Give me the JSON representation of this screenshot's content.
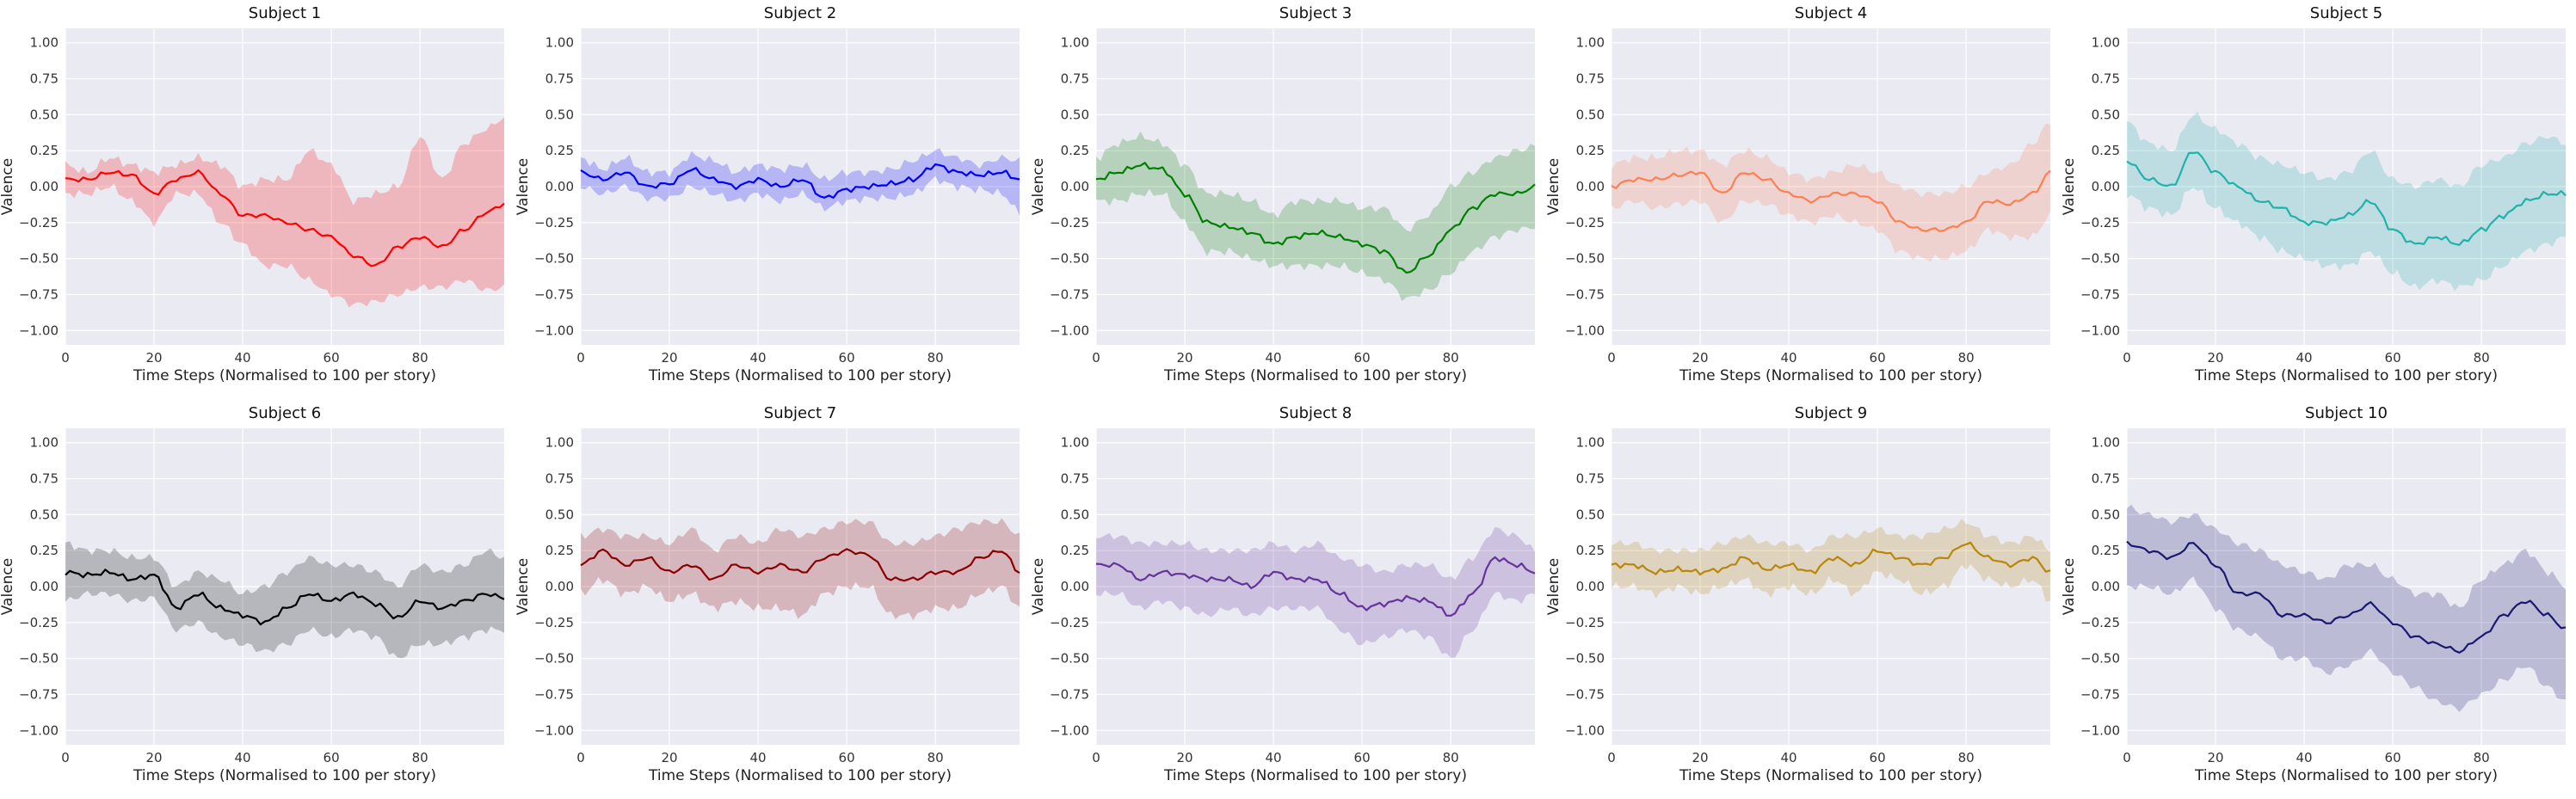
{
  "chart_data": {
    "type": "line",
    "layout": "2x5 grid of small multiples",
    "background": "#eaeaf2",
    "grid": true,
    "grid_color": "#ffffff",
    "xlim": [
      0,
      99
    ],
    "ylim": [
      -1.1,
      1.1
    ],
    "x_ticks": [
      0,
      20,
      40,
      60,
      80
    ],
    "y_ticks": [
      -1.0,
      -0.75,
      -0.5,
      -0.25,
      0.0,
      0.25,
      0.5,
      0.75,
      1.0
    ],
    "y_tick_labels": [
      "−1.00",
      "−0.75",
      "−0.50",
      "−0.25",
      "0.00",
      "0.25",
      "0.50",
      "0.75",
      "1.00"
    ],
    "xlabel": "Time Steps (Normalised to 100 per story)",
    "ylabel": "Valence",
    "band": "shaded region around the mean line",
    "knot_x": [
      0,
      5,
      10,
      15,
      20,
      25,
      30,
      35,
      40,
      45,
      50,
      55,
      60,
      65,
      70,
      75,
      80,
      85,
      90,
      95,
      99
    ],
    "panels": [
      {
        "title": "Subject 1",
        "color": "#ff0000",
        "line": [
          0.05,
          0.05,
          0.1,
          0.08,
          -0.05,
          0.05,
          0.1,
          -0.05,
          -0.2,
          -0.2,
          -0.25,
          -0.3,
          -0.35,
          -0.48,
          -0.55,
          -0.42,
          -0.35,
          -0.42,
          -0.3,
          -0.18,
          -0.12
        ],
        "upper": [
          0.15,
          0.1,
          0.2,
          0.15,
          0.1,
          0.15,
          0.2,
          0.15,
          0.0,
          0.05,
          0.05,
          0.25,
          0.15,
          -0.1,
          -0.05,
          0.0,
          0.35,
          0.05,
          0.3,
          0.4,
          0.48
        ],
        "lower": [
          -0.05,
          -0.05,
          0.0,
          -0.1,
          -0.25,
          -0.05,
          -0.05,
          -0.25,
          -0.4,
          -0.55,
          -0.55,
          -0.65,
          -0.75,
          -0.82,
          -0.8,
          -0.75,
          -0.7,
          -0.7,
          -0.65,
          -0.72,
          -0.7
        ]
      },
      {
        "title": "Subject 2",
        "color": "#0000ff",
        "line": [
          0.1,
          0.05,
          0.1,
          0.0,
          0.02,
          0.12,
          0.05,
          0.0,
          0.05,
          0.0,
          0.05,
          -0.08,
          -0.02,
          0.0,
          0.02,
          0.05,
          0.15,
          0.1,
          0.08,
          0.1,
          0.05
        ],
        "upper": [
          0.2,
          0.12,
          0.2,
          0.1,
          0.1,
          0.22,
          0.18,
          0.1,
          0.15,
          0.12,
          0.15,
          0.05,
          0.1,
          0.1,
          0.12,
          0.18,
          0.25,
          0.2,
          0.15,
          0.2,
          0.18
        ],
        "lower": [
          0.0,
          -0.05,
          0.0,
          -0.08,
          -0.08,
          0.0,
          -0.05,
          -0.1,
          -0.05,
          -0.1,
          -0.05,
          -0.15,
          -0.1,
          -0.08,
          -0.08,
          -0.05,
          0.05,
          0.0,
          -0.02,
          -0.05,
          -0.18
        ]
      },
      {
        "title": "Subject 3",
        "color": "#008000",
        "line": [
          0.05,
          0.1,
          0.15,
          0.12,
          -0.05,
          -0.25,
          -0.28,
          -0.32,
          -0.4,
          -0.35,
          -0.32,
          -0.35,
          -0.4,
          -0.45,
          -0.6,
          -0.48,
          -0.3,
          -0.15,
          -0.05,
          -0.05,
          0.0
        ],
        "upper": [
          0.2,
          0.3,
          0.35,
          0.3,
          0.15,
          -0.05,
          -0.05,
          -0.1,
          -0.2,
          -0.1,
          -0.1,
          -0.1,
          -0.15,
          -0.15,
          -0.3,
          -0.2,
          0.0,
          0.1,
          0.2,
          0.25,
          0.28
        ],
        "lower": [
          -0.1,
          -0.1,
          -0.05,
          -0.05,
          -0.25,
          -0.45,
          -0.45,
          -0.5,
          -0.55,
          -0.55,
          -0.55,
          -0.55,
          -0.6,
          -0.65,
          -0.78,
          -0.72,
          -0.6,
          -0.45,
          -0.35,
          -0.3,
          -0.28
        ]
      },
      {
        "title": "Subject 4",
        "color": "#ff7f50",
        "line": [
          0.0,
          0.05,
          0.05,
          0.08,
          0.1,
          -0.05,
          0.1,
          0.05,
          -0.05,
          -0.1,
          -0.05,
          -0.05,
          -0.1,
          -0.25,
          -0.3,
          -0.3,
          -0.25,
          -0.1,
          -0.12,
          -0.05,
          0.1
        ],
        "upper": [
          0.15,
          0.2,
          0.2,
          0.25,
          0.25,
          0.15,
          0.25,
          0.2,
          0.1,
          0.05,
          0.1,
          0.15,
          0.1,
          0.0,
          -0.05,
          -0.05,
          0.0,
          0.1,
          0.15,
          0.3,
          0.45
        ],
        "lower": [
          -0.15,
          -0.1,
          -0.15,
          -0.12,
          -0.1,
          -0.25,
          -0.1,
          -0.12,
          -0.2,
          -0.25,
          -0.2,
          -0.25,
          -0.3,
          -0.45,
          -0.5,
          -0.5,
          -0.45,
          -0.3,
          -0.35,
          -0.35,
          -0.2
        ]
      },
      {
        "title": "Subject 5",
        "color": "#20b2aa",
        "line": [
          0.18,
          0.05,
          0.0,
          0.25,
          0.1,
          0.0,
          -0.1,
          -0.15,
          -0.25,
          -0.25,
          -0.2,
          -0.1,
          -0.3,
          -0.4,
          -0.35,
          -0.4,
          -0.3,
          -0.2,
          -0.1,
          -0.05,
          -0.05
        ],
        "upper": [
          0.45,
          0.3,
          0.25,
          0.5,
          0.4,
          0.3,
          0.2,
          0.15,
          0.1,
          0.05,
          0.1,
          0.25,
          0.05,
          0.0,
          0.05,
          0.0,
          0.15,
          0.2,
          0.3,
          0.35,
          0.3
        ],
        "lower": [
          -0.05,
          -0.15,
          -0.2,
          0.0,
          -0.15,
          -0.25,
          -0.35,
          -0.45,
          -0.5,
          -0.55,
          -0.55,
          -0.45,
          -0.6,
          -0.7,
          -0.65,
          -0.7,
          -0.65,
          -0.55,
          -0.45,
          -0.4,
          -0.35
        ]
      },
      {
        "title": "Subject 6",
        "color": "#000000",
        "line": [
          0.1,
          0.08,
          0.1,
          0.05,
          0.08,
          -0.15,
          -0.05,
          -0.15,
          -0.2,
          -0.25,
          -0.15,
          -0.05,
          -0.1,
          -0.05,
          -0.12,
          -0.22,
          -0.1,
          -0.15,
          -0.1,
          -0.05,
          -0.08
        ],
        "upper": [
          0.3,
          0.25,
          0.25,
          0.2,
          0.2,
          0.0,
          0.1,
          0.05,
          -0.05,
          0.0,
          0.1,
          0.2,
          0.15,
          0.15,
          0.1,
          0.0,
          0.15,
          0.1,
          0.15,
          0.25,
          0.2
        ],
        "lower": [
          -0.1,
          -0.05,
          -0.05,
          -0.1,
          -0.08,
          -0.3,
          -0.25,
          -0.35,
          -0.4,
          -0.45,
          -0.4,
          -0.3,
          -0.35,
          -0.3,
          -0.35,
          -0.5,
          -0.4,
          -0.4,
          -0.35,
          -0.3,
          -0.3
        ]
      },
      {
        "title": "Subject 7",
        "color": "#8b0000",
        "line": [
          0.15,
          0.25,
          0.15,
          0.2,
          0.1,
          0.15,
          0.05,
          0.15,
          0.1,
          0.15,
          0.1,
          0.2,
          0.25,
          0.22,
          0.05,
          0.05,
          0.1,
          0.1,
          0.2,
          0.25,
          0.1
        ],
        "upper": [
          0.35,
          0.4,
          0.35,
          0.35,
          0.3,
          0.4,
          0.25,
          0.35,
          0.3,
          0.4,
          0.35,
          0.4,
          0.45,
          0.45,
          0.3,
          0.3,
          0.35,
          0.4,
          0.45,
          0.45,
          0.35
        ],
        "lower": [
          -0.05,
          0.05,
          -0.05,
          0.0,
          -0.1,
          -0.05,
          -0.15,
          -0.1,
          -0.15,
          -0.15,
          -0.2,
          -0.05,
          0.0,
          0.0,
          -0.2,
          -0.2,
          -0.15,
          -0.15,
          -0.05,
          0.0,
          -0.15
        ]
      },
      {
        "title": "Subject 8",
        "color": "#663399",
        "line": [
          0.15,
          0.15,
          0.05,
          0.1,
          0.08,
          0.05,
          0.05,
          0.0,
          0.1,
          0.05,
          0.05,
          -0.05,
          -0.15,
          -0.12,
          -0.08,
          -0.1,
          -0.2,
          -0.05,
          0.2,
          0.15,
          0.1
        ],
        "upper": [
          0.35,
          0.35,
          0.3,
          0.3,
          0.3,
          0.25,
          0.25,
          0.25,
          0.3,
          0.25,
          0.3,
          0.2,
          0.15,
          0.1,
          0.15,
          0.15,
          0.05,
          0.2,
          0.4,
          0.35,
          0.25
        ],
        "lower": [
          -0.05,
          -0.05,
          -0.15,
          -0.1,
          -0.15,
          -0.2,
          -0.15,
          -0.2,
          -0.15,
          -0.15,
          -0.15,
          -0.3,
          -0.4,
          -0.35,
          -0.3,
          -0.35,
          -0.5,
          -0.3,
          -0.05,
          -0.1,
          -0.05
        ]
      },
      {
        "title": "Subject 9",
        "color": "#b8860b",
        "line": [
          0.15,
          0.15,
          0.1,
          0.12,
          0.1,
          0.12,
          0.2,
          0.12,
          0.15,
          0.1,
          0.2,
          0.15,
          0.25,
          0.2,
          0.15,
          0.2,
          0.3,
          0.2,
          0.15,
          0.2,
          0.1
        ],
        "upper": [
          0.3,
          0.3,
          0.25,
          0.25,
          0.25,
          0.3,
          0.35,
          0.3,
          0.3,
          0.25,
          0.35,
          0.35,
          0.4,
          0.35,
          0.35,
          0.4,
          0.45,
          0.35,
          0.3,
          0.35,
          0.25
        ],
        "lower": [
          0.0,
          0.0,
          -0.05,
          0.0,
          -0.05,
          0.0,
          0.05,
          -0.05,
          0.0,
          -0.05,
          0.05,
          -0.05,
          0.1,
          0.05,
          -0.05,
          0.0,
          0.15,
          0.05,
          0.0,
          0.05,
          -0.1
        ]
      },
      {
        "title": "Subject 10",
        "color": "#191970",
        "line": [
          0.3,
          0.25,
          0.2,
          0.3,
          0.15,
          -0.05,
          -0.05,
          -0.2,
          -0.2,
          -0.25,
          -0.2,
          -0.12,
          -0.25,
          -0.35,
          -0.4,
          -0.45,
          -0.35,
          -0.2,
          -0.1,
          -0.2,
          -0.3
        ],
        "upper": [
          0.55,
          0.5,
          0.45,
          0.5,
          0.4,
          0.3,
          0.25,
          0.15,
          0.1,
          0.05,
          0.15,
          0.15,
          0.05,
          -0.05,
          -0.05,
          -0.15,
          0.05,
          0.15,
          0.25,
          0.1,
          0.0
        ],
        "lower": [
          0.0,
          0.0,
          -0.05,
          0.05,
          -0.15,
          -0.3,
          -0.35,
          -0.5,
          -0.5,
          -0.6,
          -0.55,
          -0.45,
          -0.6,
          -0.7,
          -0.8,
          -0.85,
          -0.75,
          -0.65,
          -0.55,
          -0.7,
          -0.8
        ]
      }
    ]
  }
}
